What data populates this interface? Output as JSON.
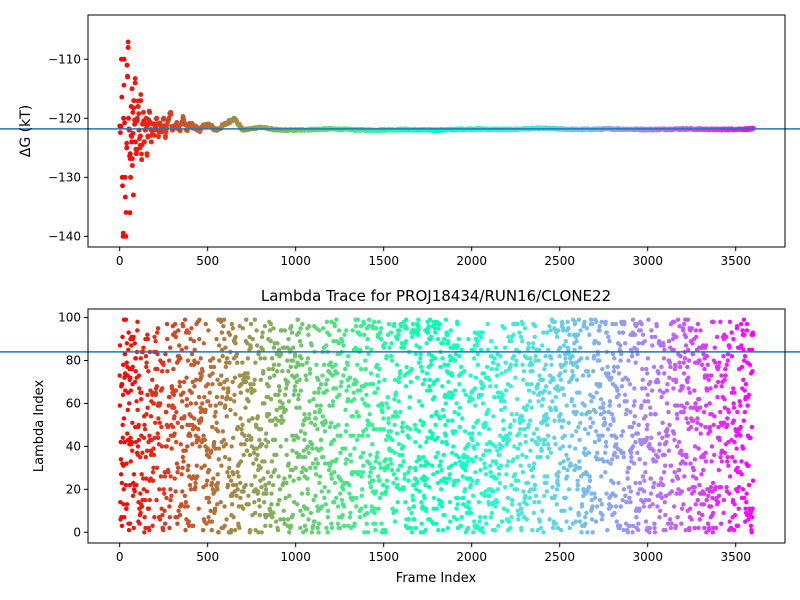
{
  "chart_data": [
    {
      "type": "scatter",
      "title": "",
      "xlabel": "",
      "ylabel": "ΔG (kT)",
      "xlim": [
        -180,
        3780
      ],
      "ylim": [
        -141.8,
        -102.5
      ],
      "xticks": [
        0,
        500,
        1000,
        1500,
        2000,
        2500,
        3000,
        3500
      ],
      "xtick_labels": [
        "0",
        "500",
        "1000",
        "1500",
        "2000",
        "2500",
        "3000",
        "3500"
      ],
      "yticks": [
        -140,
        -130,
        -120,
        -110
      ],
      "ytick_labels": [
        "−140",
        "−130",
        "−120",
        "−110"
      ],
      "hline": -121.8,
      "hline_color": "#1f77b4",
      "colormap": "rainbow (red → violet with frame index)",
      "points": [
        [
          10,
          -110
        ],
        [
          15,
          -130
        ],
        [
          20,
          -140
        ],
        [
          22,
          -120
        ],
        [
          25,
          -110
        ],
        [
          30,
          -130
        ],
        [
          35,
          -140
        ],
        [
          40,
          -125
        ],
        [
          42,
          -111
        ],
        [
          45,
          -113
        ],
        [
          48,
          -108
        ],
        [
          50,
          -120
        ],
        [
          55,
          -122
        ],
        [
          58,
          -136
        ],
        [
          60,
          -126
        ],
        [
          62,
          -130
        ],
        [
          65,
          -118
        ],
        [
          68,
          -124
        ],
        [
          70,
          -115
        ],
        [
          72,
          -128
        ],
        [
          75,
          -119
        ],
        [
          78,
          -133
        ],
        [
          80,
          -117
        ],
        [
          85,
          -121
        ],
        [
          88,
          -114
        ],
        [
          90,
          -124
        ],
        [
          95,
          -126
        ],
        [
          100,
          -120
        ],
        [
          105,
          -118
        ],
        [
          110,
          -122
        ],
        [
          115,
          -125
        ],
        [
          118,
          -123
        ],
        [
          120,
          -117
        ],
        [
          125,
          -127
        ],
        [
          130,
          -121
        ],
        [
          135,
          -119
        ],
        [
          140,
          -124
        ],
        [
          145,
          -122
        ],
        [
          150,
          -120
        ],
        [
          155,
          -126
        ],
        [
          160,
          -123
        ],
        [
          165,
          -121
        ],
        [
          170,
          -119
        ],
        [
          180,
          -124
        ],
        [
          190,
          -121
        ],
        [
          200,
          -122
        ],
        [
          210,
          -120
        ],
        [
          220,
          -123
        ],
        [
          230,
          -121
        ],
        [
          240,
          -122
        ],
        [
          250,
          -120
        ],
        [
          260,
          -123
        ],
        [
          270,
          -121
        ],
        [
          280,
          -120
        ],
        [
          290,
          -119
        ],
        [
          300,
          -122
        ],
        [
          320,
          -121
        ],
        [
          340,
          -122
        ],
        [
          360,
          -120
        ],
        [
          380,
          -122
        ],
        [
          400,
          -121
        ],
        [
          450,
          -122
        ],
        [
          500,
          -121
        ],
        [
          550,
          -122
        ],
        [
          600,
          -121
        ],
        [
          650,
          -120
        ],
        [
          700,
          -122
        ],
        [
          800,
          -121.5
        ],
        [
          900,
          -122
        ],
        [
          1000,
          -122
        ],
        [
          1200,
          -121.8
        ],
        [
          1400,
          -122
        ],
        [
          1600,
          -121.9
        ],
        [
          1800,
          -122
        ],
        [
          2000,
          -121.8
        ],
        [
          2200,
          -121.9
        ],
        [
          2400,
          -121.7
        ],
        [
          2600,
          -121.9
        ],
        [
          2800,
          -121.8
        ],
        [
          3000,
          -121.9
        ],
        [
          3200,
          -121.8
        ],
        [
          3400,
          -121.9
        ],
        [
          3590,
          -121.8
        ]
      ]
    },
    {
      "type": "scatter",
      "title": "Lambda Trace for PROJ18434/RUN16/CLONE22",
      "xlabel": "Frame Index",
      "ylabel": "Lambda Index",
      "xlim": [
        -180,
        3780
      ],
      "ylim": [
        -5,
        104
      ],
      "xticks": [
        0,
        500,
        1000,
        1500,
        2000,
        2500,
        3000,
        3500
      ],
      "xtick_labels": [
        "0",
        "500",
        "1000",
        "1500",
        "2000",
        "2500",
        "3000",
        "3500"
      ],
      "yticks": [
        0,
        20,
        40,
        60,
        80,
        100
      ],
      "ytick_labels": [
        "0",
        "20",
        "40",
        "60",
        "80",
        "100"
      ],
      "hline": 84,
      "hline_color": "#1f77b4",
      "colormap": "rainbow (red → violet with frame index)",
      "x_range": [
        0,
        3600
      ],
      "y_range": [
        0,
        99
      ],
      "point_count": 3600,
      "distribution": "roughly uniform random lambda index 0–99 per frame"
    }
  ]
}
